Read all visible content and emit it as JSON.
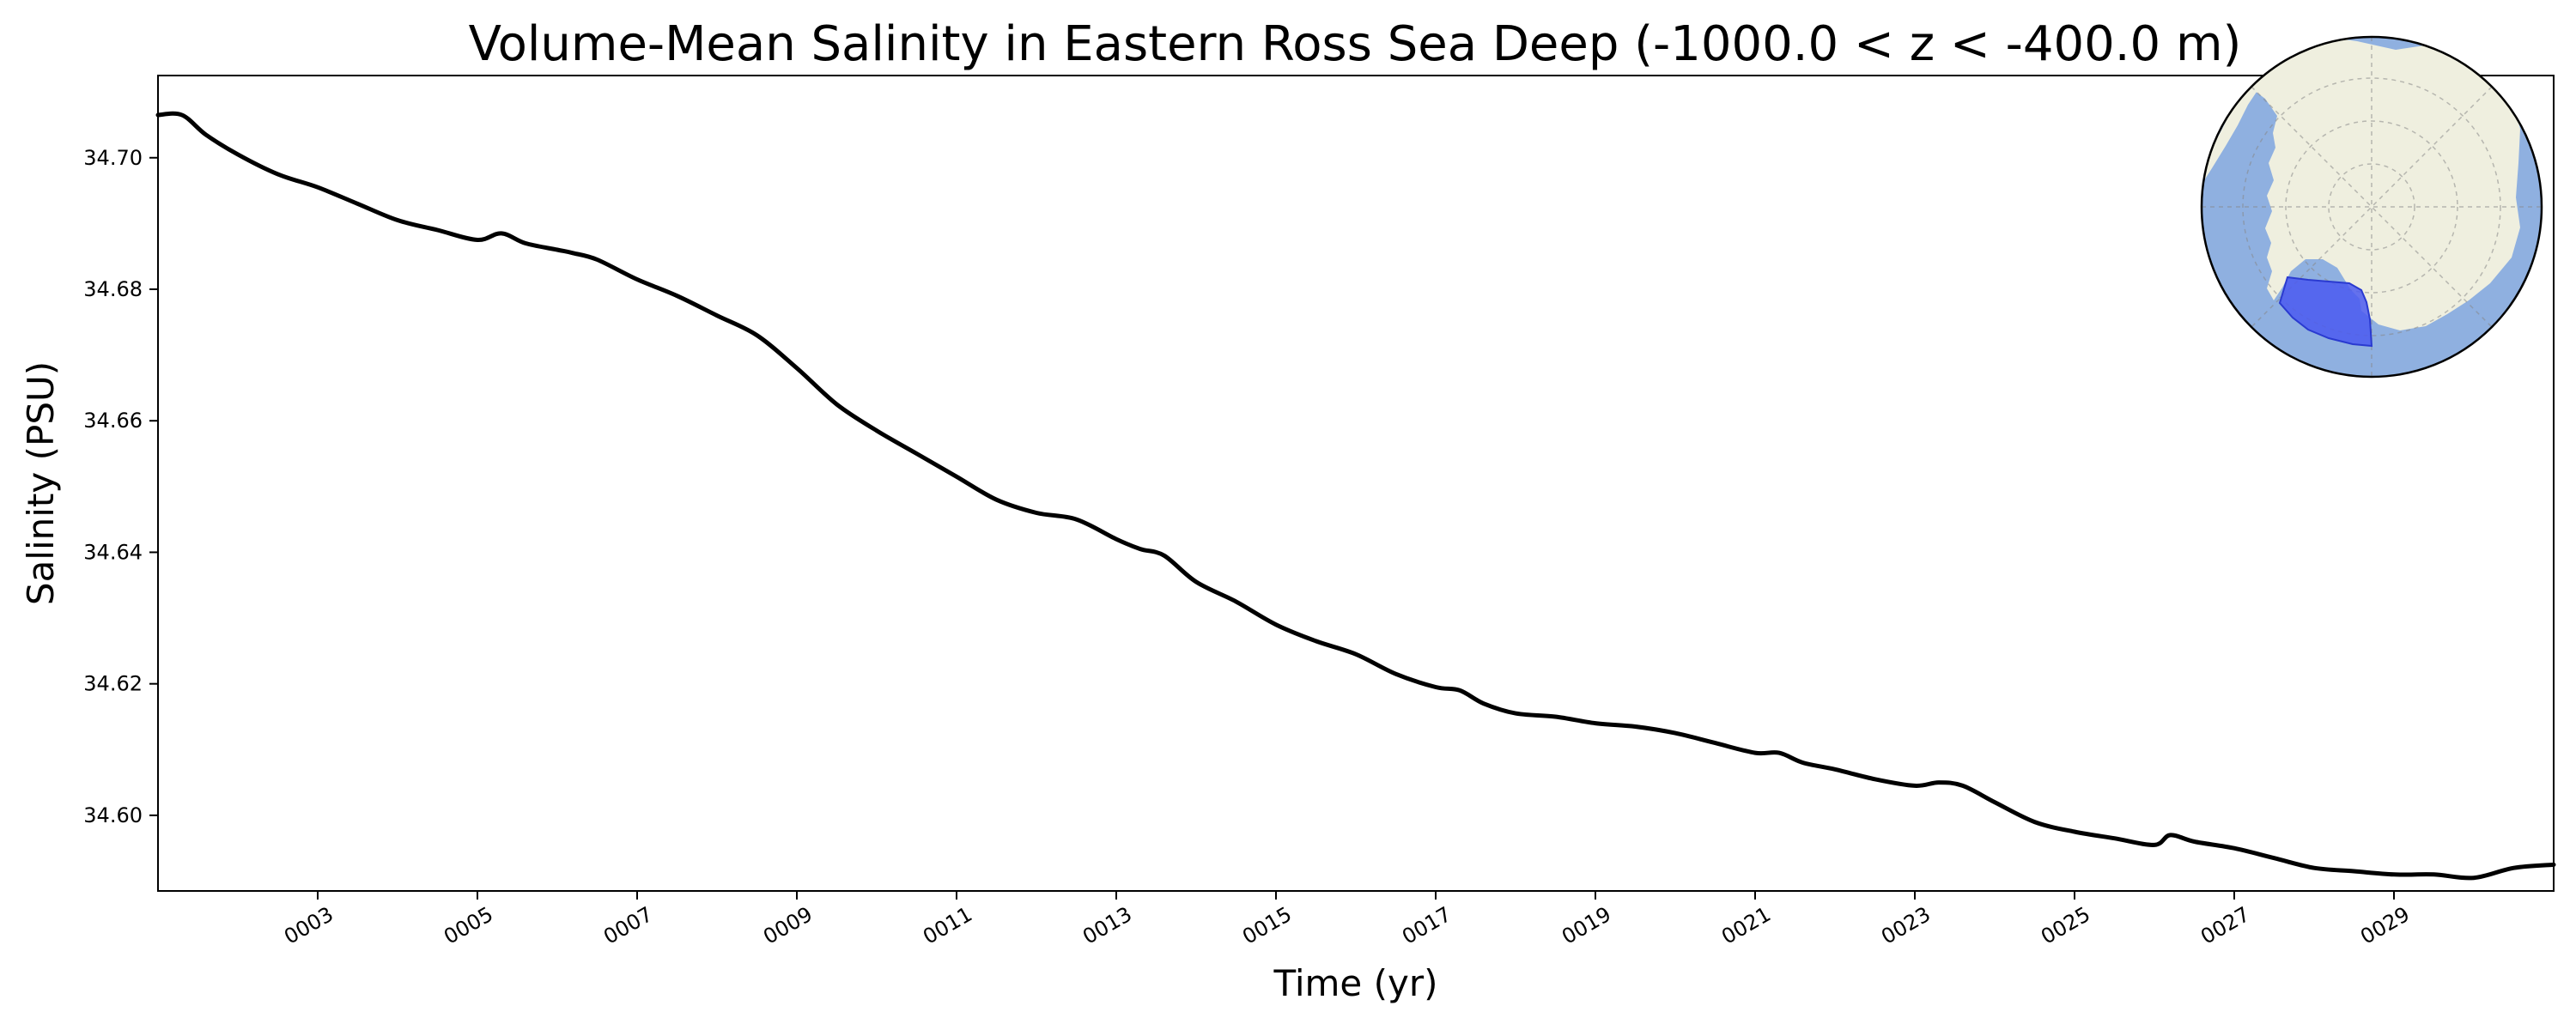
{
  "chart_data": {
    "type": "line",
    "title": "Volume-Mean Salinity in Eastern Ross Sea Deep (-1000.0 < z < -400.0 m)",
    "xlabel": "Time (yr)",
    "ylabel": "Salinity (PSU)",
    "xlim": [
      1.0,
      31.0
    ],
    "ylim": [
      34.5885,
      34.7125
    ],
    "x_ticks": [
      3,
      5,
      7,
      9,
      11,
      13,
      15,
      17,
      19,
      21,
      23,
      25,
      27,
      29
    ],
    "x_tick_labels": [
      "0003",
      "0005",
      "0007",
      "0009",
      "0011",
      "0013",
      "0015",
      "0017",
      "0019",
      "0021",
      "0023",
      "0025",
      "0027",
      "0029"
    ],
    "y_ticks": [
      34.6,
      34.62,
      34.64,
      34.66,
      34.68,
      34.7
    ],
    "y_tick_labels": [
      "34.60",
      "34.62",
      "34.64",
      "34.66",
      "34.68",
      "34.70"
    ],
    "grid": false,
    "series": [
      {
        "color": "#000000",
        "x": [
          1.0,
          1.3,
          1.6,
          2.0,
          2.5,
          3.0,
          3.5,
          4.0,
          4.5,
          5.0,
          5.3,
          5.6,
          6.0,
          6.2,
          6.5,
          7.0,
          7.5,
          8.0,
          8.5,
          9.0,
          9.5,
          10.0,
          10.5,
          11.0,
          11.5,
          12.0,
          12.5,
          13.0,
          13.3,
          13.6,
          14.0,
          14.5,
          15.0,
          15.5,
          16.0,
          16.5,
          17.0,
          17.3,
          17.6,
          18.0,
          18.5,
          19.0,
          19.5,
          20.0,
          20.5,
          21.0,
          21.3,
          21.6,
          22.0,
          22.5,
          23.0,
          23.3,
          23.6,
          24.0,
          24.5,
          25.0,
          25.5,
          26.0,
          26.2,
          26.5,
          27.0,
          27.5,
          28.0,
          28.5,
          29.0,
          29.5,
          30.0,
          30.5,
          31.0
        ],
        "values": [
          34.7065,
          34.7065,
          34.7035,
          34.7005,
          34.6975,
          34.6955,
          34.693,
          34.6905,
          34.689,
          34.6875,
          34.6885,
          34.687,
          34.686,
          34.6855,
          34.6845,
          34.6815,
          34.679,
          34.676,
          34.673,
          34.668,
          34.6625,
          34.6585,
          34.655,
          34.6515,
          34.648,
          34.646,
          34.645,
          34.642,
          34.6405,
          34.6395,
          34.6355,
          34.6325,
          34.629,
          34.6265,
          34.6245,
          34.6215,
          34.6195,
          34.619,
          34.617,
          34.6155,
          34.615,
          34.614,
          34.6135,
          34.6125,
          34.611,
          34.6095,
          34.6095,
          34.608,
          34.607,
          34.6055,
          34.6045,
          34.605,
          34.6045,
          34.602,
          34.599,
          34.5975,
          34.5965,
          34.5955,
          34.597,
          34.596,
          34.595,
          34.5935,
          34.592,
          34.5915,
          34.591,
          34.591,
          34.5905,
          34.592,
          34.5925
        ]
      }
    ]
  },
  "inset_map": {
    "projection": "south-polar-stereographic",
    "ocean_color": "#8fb0e0",
    "land_color": "#efefdf",
    "region_color": "#4b5bf0",
    "region_name": "Eastern Ross Sea Deep"
  }
}
